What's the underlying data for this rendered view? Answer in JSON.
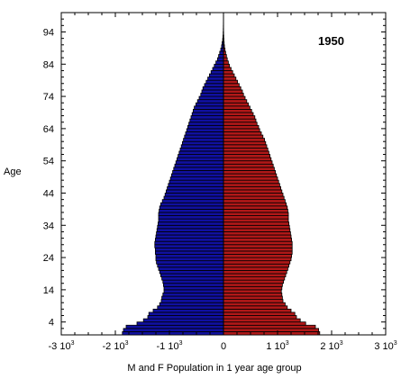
{
  "chart_data": {
    "type": "bar",
    "orientation": "horizontal-population-pyramid",
    "annotation": "1950",
    "xlabel": "M and F Population in 1 year age group",
    "ylabel": "Age",
    "xlim": [
      -3000,
      3000
    ],
    "ylim": [
      0,
      100
    ],
    "x_ticks": [
      {
        "value": -3000,
        "base": "-3 10",
        "exp": "3"
      },
      {
        "value": -2000,
        "base": "-2 10",
        "exp": "3"
      },
      {
        "value": -1000,
        "base": "-1 10",
        "exp": "3"
      },
      {
        "value": 0,
        "base": "0",
        "exp": ""
      },
      {
        "value": 1000,
        "base": "1 10",
        "exp": "3"
      },
      {
        "value": 2000,
        "base": "2 10",
        "exp": "3"
      },
      {
        "value": 3000,
        "base": "3 10",
        "exp": "3"
      }
    ],
    "y_ticks": [
      4,
      14,
      24,
      34,
      44,
      54,
      64,
      74,
      84,
      94
    ],
    "ages": [
      0,
      1,
      2,
      3,
      4,
      5,
      6,
      7,
      8,
      9,
      10,
      11,
      12,
      13,
      14,
      15,
      16,
      17,
      18,
      19,
      20,
      21,
      22,
      23,
      24,
      25,
      26,
      27,
      28,
      29,
      30,
      31,
      32,
      33,
      34,
      35,
      36,
      37,
      38,
      39,
      40,
      41,
      42,
      43,
      44,
      45,
      46,
      47,
      48,
      49,
      50,
      51,
      52,
      53,
      54,
      55,
      56,
      57,
      58,
      59,
      60,
      61,
      62,
      63,
      64,
      65,
      66,
      67,
      68,
      69,
      70,
      71,
      72,
      73,
      74,
      75,
      76,
      77,
      78,
      79,
      80,
      81,
      82,
      83,
      84,
      85,
      86,
      87,
      88,
      89,
      90,
      91,
      92,
      93,
      94,
      95,
      96,
      97,
      98
    ],
    "series": [
      {
        "name": "M",
        "color": "#1010a0",
        "values": [
          1870,
          1850,
          1800,
          1600,
          1480,
          1400,
          1380,
          1300,
          1220,
          1180,
          1150,
          1140,
          1120,
          1100,
          1100,
          1110,
          1120,
          1140,
          1160,
          1180,
          1200,
          1220,
          1240,
          1250,
          1250,
          1260,
          1260,
          1270,
          1270,
          1260,
          1250,
          1240,
          1230,
          1220,
          1210,
          1200,
          1200,
          1200,
          1190,
          1180,
          1160,
          1130,
          1100,
          1080,
          1060,
          1040,
          1020,
          1000,
          980,
          960,
          940,
          920,
          900,
          880,
          860,
          840,
          820,
          800,
          780,
          760,
          740,
          720,
          700,
          680,
          660,
          640,
          620,
          600,
          580,
          560,
          540,
          510,
          480,
          450,
          420,
          400,
          380,
          350,
          320,
          290,
          260,
          230,
          200,
          170,
          140,
          110,
          90,
          70,
          50,
          35,
          25,
          15,
          10,
          6,
          4,
          3,
          2,
          1,
          1
        ]
      },
      {
        "name": "F",
        "color": "#b01818",
        "values": [
          1780,
          1760,
          1700,
          1520,
          1420,
          1350,
          1320,
          1250,
          1180,
          1140,
          1100,
          1090,
          1080,
          1070,
          1080,
          1090,
          1110,
          1130,
          1150,
          1170,
          1190,
          1210,
          1230,
          1250,
          1260,
          1270,
          1270,
          1270,
          1270,
          1260,
          1250,
          1240,
          1230,
          1220,
          1210,
          1200,
          1200,
          1200,
          1190,
          1180,
          1160,
          1140,
          1120,
          1100,
          1080,
          1060,
          1040,
          1020,
          1000,
          980,
          960,
          940,
          920,
          900,
          880,
          860,
          840,
          820,
          800,
          780,
          760,
          730,
          700,
          670,
          650,
          620,
          600,
          580,
          550,
          520,
          490,
          460,
          430,
          400,
          370,
          350,
          320,
          290,
          260,
          230,
          200,
          170,
          140,
          110,
          90,
          70,
          55,
          40,
          28,
          18,
          12,
          8,
          5,
          3,
          2,
          1,
          1,
          1,
          1
        ]
      }
    ]
  }
}
